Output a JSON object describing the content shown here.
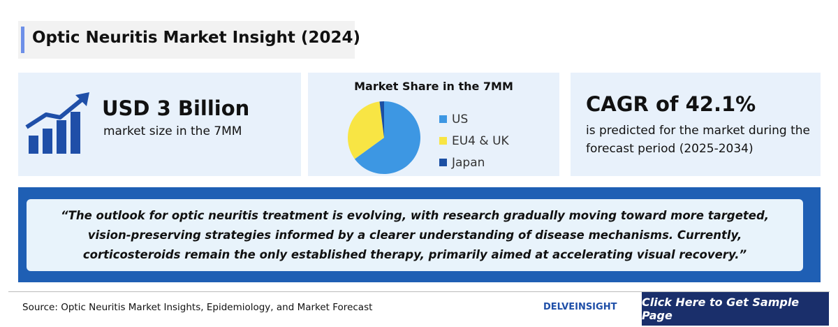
{
  "header": {
    "title": "Optic Neuritis Market Insight (2024)"
  },
  "cards": {
    "market_size": {
      "headline": "USD 3 Billion",
      "text": "market size in the 7MM"
    },
    "cagr": {
      "headline": "CAGR of 42.1%",
      "text": "is predicted for the market during the forecast period (2025-2034)"
    }
  },
  "chart_data": {
    "type": "pie",
    "title": "Market Share in the 7MM",
    "categories": [
      "US",
      "EU4 & UK",
      "Japan"
    ],
    "values": [
      65,
      33,
      2
    ],
    "colors": [
      "#3d97e3",
      "#f8e544",
      "#1b4fa3"
    ]
  },
  "quote": "“The outlook for optic neuritis treatment is evolving, with research gradually moving toward more targeted, vision-preserving strategies informed by a clearer understanding of disease mechanisms. Currently, corticosteroids remain the only established therapy, primarily aimed at accelerating visual recovery.”",
  "footer": {
    "source": "Source: Optic Neuritis Market Insights, Epidemiology, and Market Forecast",
    "logo": "DELVEINSIGHT",
    "button": "Click Here to Get Sample Page"
  }
}
